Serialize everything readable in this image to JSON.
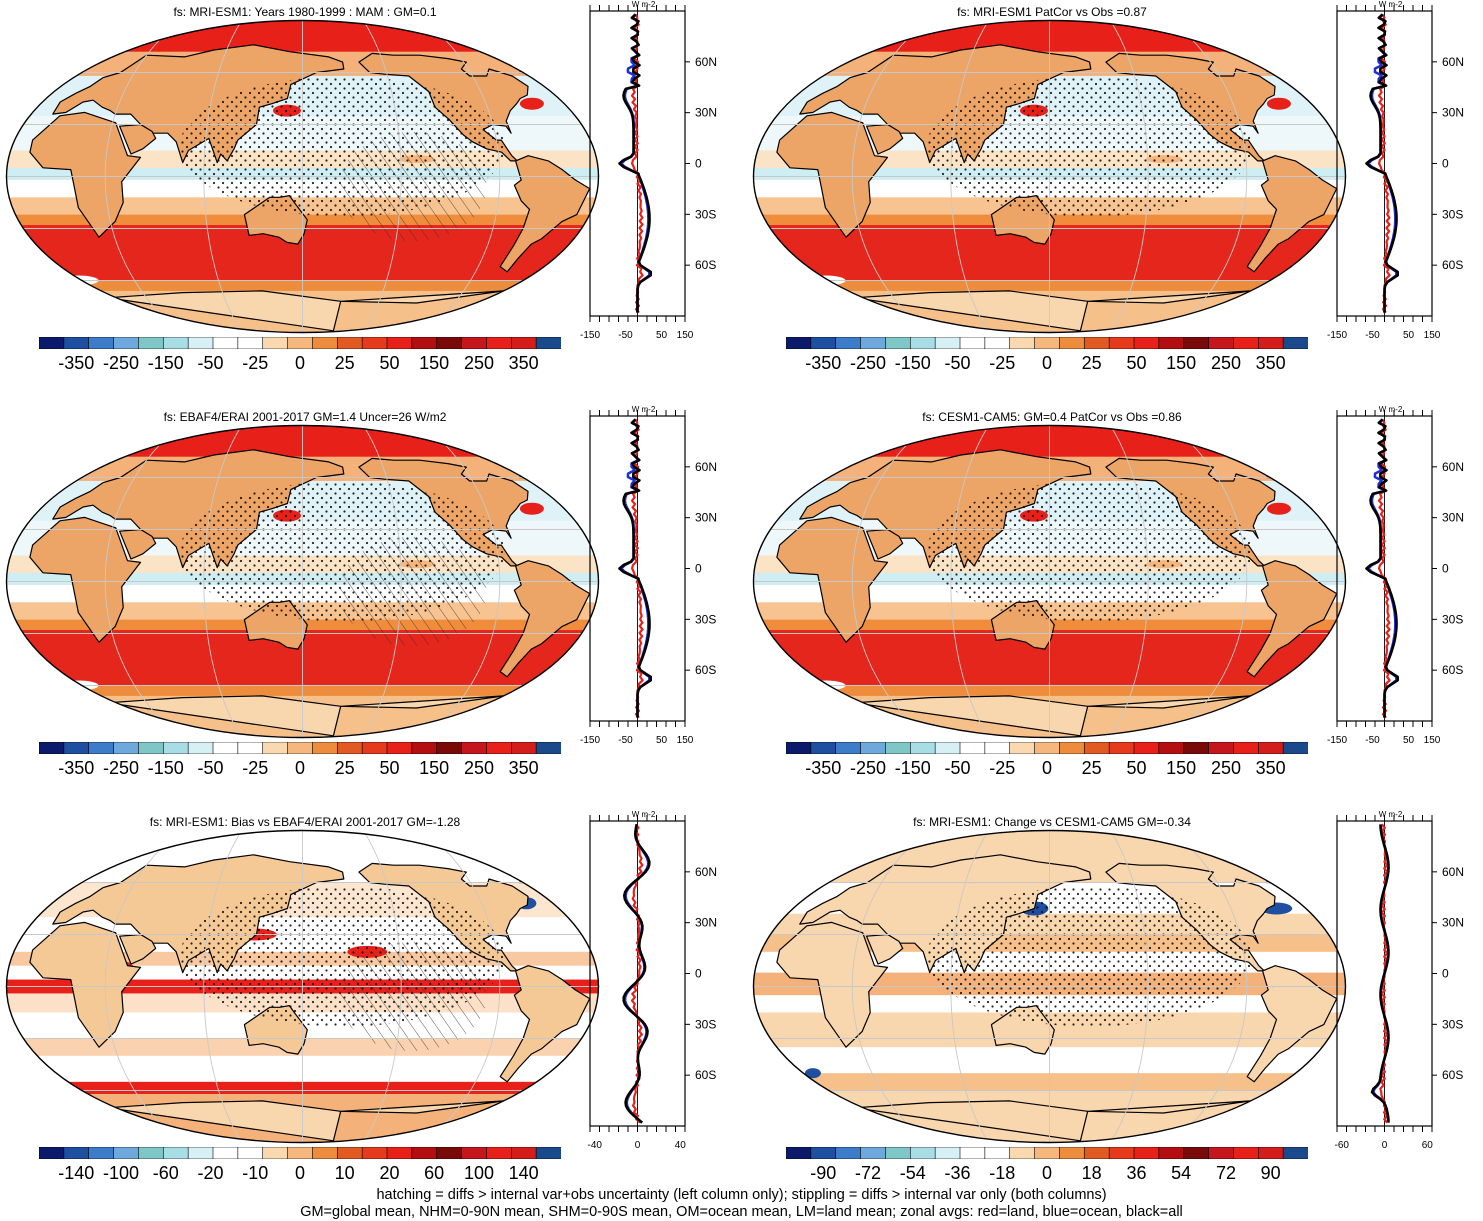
{
  "panels": [
    {
      "id": "mri-mam",
      "title": "fs: MRI-ESM1: Years 1980-1999 : MAM : GM=0.1",
      "colorbar_labels": [
        "-350",
        "-250",
        "-150",
        "-50",
        "-25",
        "0",
        "25",
        "50",
        "150",
        "250",
        "350"
      ],
      "zonal_axis": {
        "ticks": [
          "-150",
          "-50",
          "50",
          "150"
        ],
        "lat_labels": [
          "60N",
          "30N",
          "0",
          "30S",
          "60S"
        ],
        "units": "W m-2"
      },
      "scheme": "abs",
      "hatching": true,
      "stippling": true
    },
    {
      "id": "mri-patcor",
      "title": "fs: MRI-ESM1 PatCor vs Obs =0.87",
      "colorbar_labels": [
        "-350",
        "-250",
        "-150",
        "-50",
        "-25",
        "0",
        "25",
        "50",
        "150",
        "250",
        "350"
      ],
      "zonal_axis": {
        "ticks": [
          "-150",
          "-50",
          "50",
          "150"
        ],
        "lat_labels": [
          "60N",
          "30N",
          "0",
          "30S",
          "60S"
        ],
        "units": "W m-2"
      },
      "scheme": "abs",
      "hatching": false,
      "stippling": true
    },
    {
      "id": "obs",
      "title": "fs: EBAF4/ERAI 2001-2017 GM=1.4 Uncer=26 W/m2",
      "colorbar_labels": [
        "-350",
        "-250",
        "-150",
        "-50",
        "-25",
        "0",
        "25",
        "50",
        "150",
        "250",
        "350"
      ],
      "zonal_axis": {
        "ticks": [
          "-150",
          "-50",
          "50",
          "150"
        ],
        "lat_labels": [
          "60N",
          "30N",
          "0",
          "30S",
          "60S"
        ],
        "units": "W m-2"
      },
      "scheme": "abs",
      "hatching": true,
      "stippling": true
    },
    {
      "id": "cesm",
      "title": "fs: CESM1-CAM5: GM=0.4 PatCor vs Obs =0.86",
      "colorbar_labels": [
        "-350",
        "-250",
        "-150",
        "-50",
        "-25",
        "0",
        "25",
        "50",
        "150",
        "250",
        "350"
      ],
      "zonal_axis": {
        "ticks": [
          "-150",
          "-50",
          "50",
          "150"
        ],
        "lat_labels": [
          "60N",
          "30N",
          "0",
          "30S",
          "60S"
        ],
        "units": "W m-2"
      },
      "scheme": "abs",
      "hatching": false,
      "stippling": true
    },
    {
      "id": "bias",
      "title": "fs: MRI-ESM1: Bias vs EBAF4/ERAI 2001-2017 GM=-1.28",
      "colorbar_labels": [
        "-140",
        "-100",
        "-60",
        "-20",
        "-10",
        "0",
        "10",
        "20",
        "60",
        "100",
        "140"
      ],
      "zonal_axis": {
        "ticks": [
          "-40",
          "0",
          "40"
        ],
        "lat_labels": [
          "60N",
          "30N",
          "0",
          "30S",
          "60S"
        ],
        "units": "W m-2"
      },
      "scheme": "bias",
      "hatching": true,
      "stippling": true
    },
    {
      "id": "change",
      "title": "fs: MRI-ESM1: Change vs CESM1-CAM5 GM=-0.34",
      "colorbar_labels": [
        "-90",
        "-72",
        "-54",
        "-36",
        "-18",
        "0",
        "18",
        "36",
        "54",
        "72",
        "90"
      ],
      "zonal_axis": {
        "ticks": [
          "-60",
          "0",
          "60"
        ],
        "lat_labels": [
          "60N",
          "30N",
          "0",
          "30S",
          "60S"
        ],
        "units": "W m-2"
      },
      "scheme": "change",
      "hatching": false,
      "stippling": true
    }
  ],
  "colorbar_colors": [
    "#0b1a6b",
    "#1f4fa0",
    "#3d7cc9",
    "#6ea8dd",
    "#7fc7c6",
    "#a9dde6",
    "#d6f0f5",
    "#ffffff",
    "#ffffff",
    "#fbd9b0",
    "#f6b77e",
    "#ed8c3c",
    "#e05a22",
    "#e53a1c",
    "#e8201a",
    "#b40f10",
    "#7a0a0a",
    "#c4161c",
    "#e8201a",
    "#d21d1b",
    "#1a4a8c"
  ],
  "legend_colors": {
    "land": "#e8201a",
    "ocean": "#1f2fd6",
    "all": "#000000"
  },
  "footer": {
    "line1": "hatching = diffs > internal var+obs uncertainty (left column only); stippling = diffs > internal var only (both columns)",
    "line2": "GM=global mean, NHM=0-90N mean, SHM=0-90S mean, OM=ocean mean, LM=land mean; zonal avgs: red=land, blue=ocean, black=all"
  }
}
